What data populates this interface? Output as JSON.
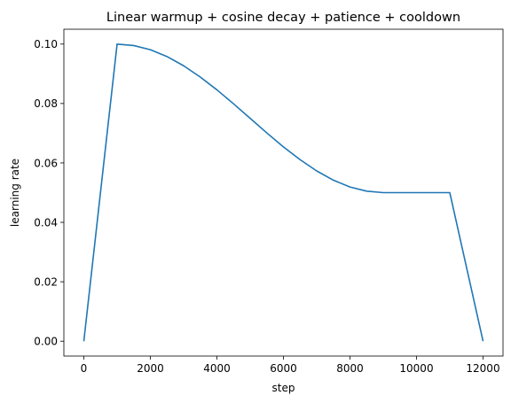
{
  "chart_data": {
    "type": "line",
    "title": "Linear warmup + cosine decay + patience + cooldown",
    "xlabel": "step",
    "ylabel": "learning rate",
    "xlim": [
      -600,
      12600
    ],
    "ylim": [
      -0.005,
      0.105
    ],
    "xticks": [
      0,
      2000,
      4000,
      6000,
      8000,
      10000,
      12000
    ],
    "xtick_labels": [
      "0",
      "2000",
      "4000",
      "6000",
      "8000",
      "10000",
      "12000"
    ],
    "yticks": [
      0.0,
      0.02,
      0.04,
      0.06,
      0.08,
      0.1
    ],
    "ytick_labels": [
      "0.00",
      "0.02",
      "0.04",
      "0.06",
      "0.08",
      "0.10"
    ],
    "grid": false,
    "series": [
      {
        "color": "#1f77b4",
        "x": [
          0,
          1000,
          1500,
          2000,
          2500,
          3000,
          3500,
          4000,
          4500,
          5000,
          5500,
          6000,
          6500,
          7000,
          7500,
          8000,
          8500,
          9000,
          10000,
          11000,
          12000
        ],
        "y": [
          0.0,
          0.1,
          0.0995,
          0.0981,
          0.0958,
          0.0927,
          0.0889,
          0.0846,
          0.0799,
          0.075,
          0.0701,
          0.0654,
          0.0611,
          0.0573,
          0.0542,
          0.0519,
          0.0505,
          0.05,
          0.05,
          0.05,
          0.0
        ]
      }
    ]
  }
}
